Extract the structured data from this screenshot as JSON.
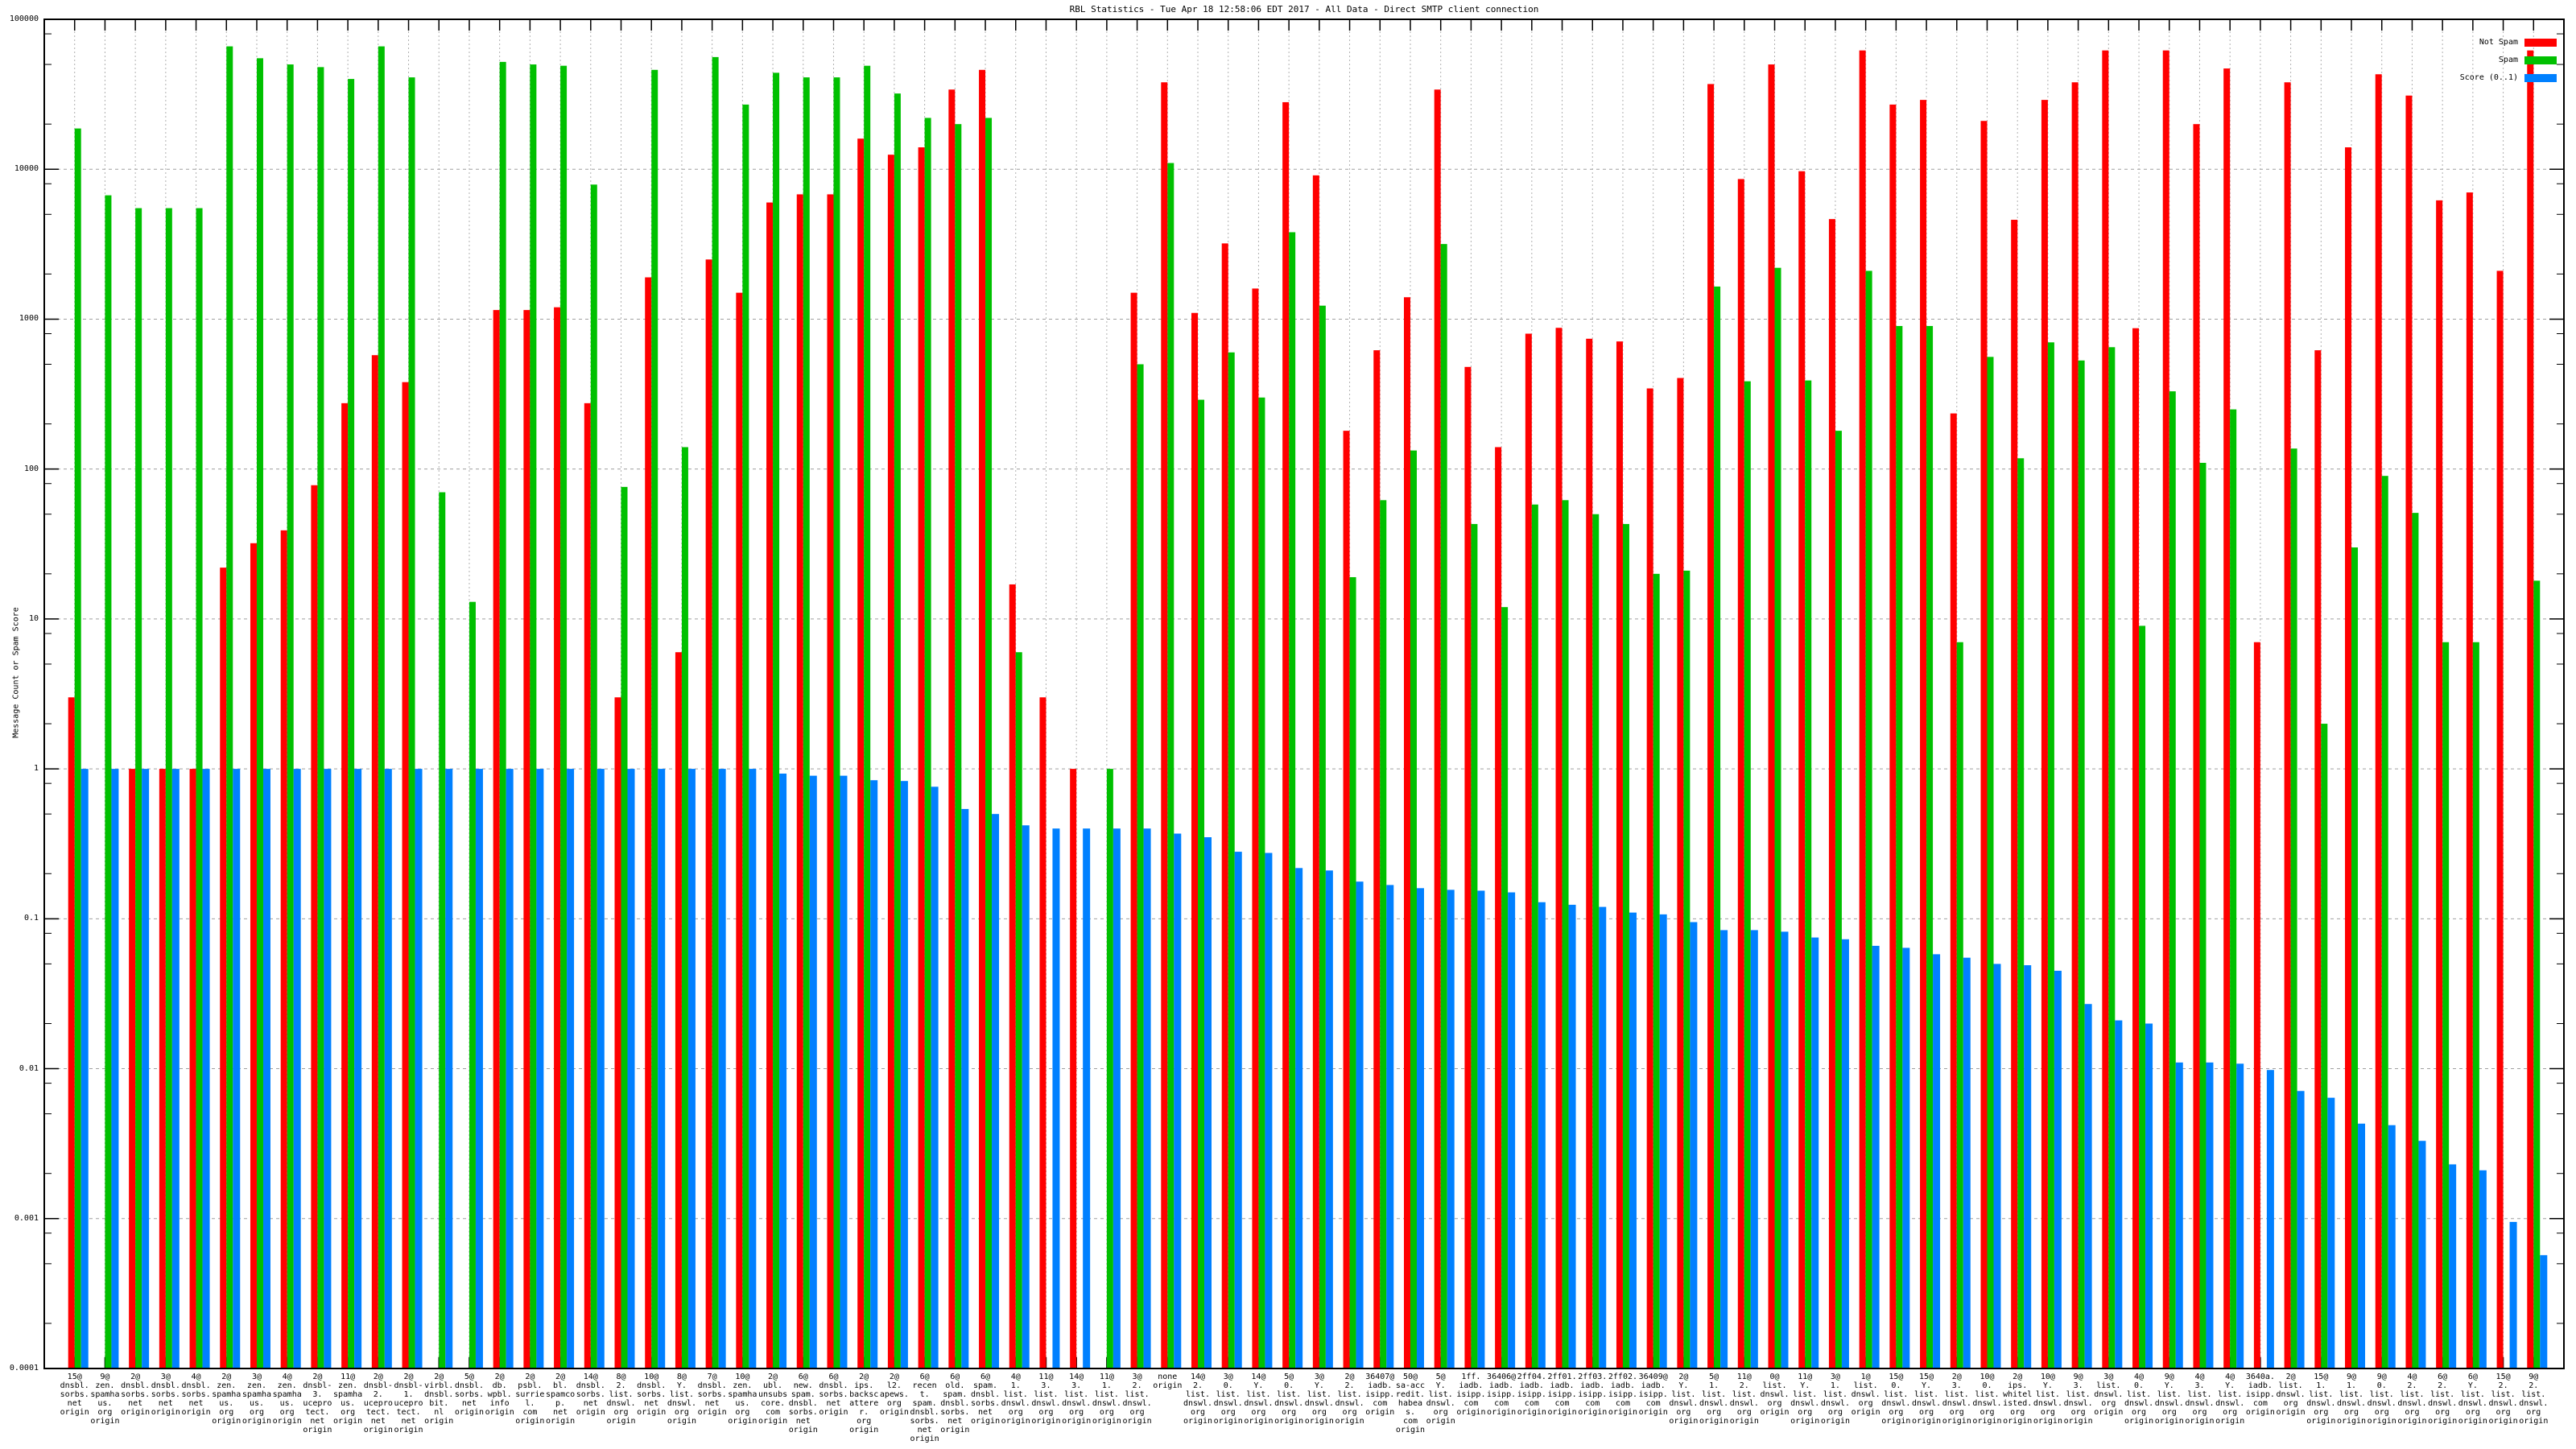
{
  "chart_data": {
    "type": "bar",
    "title": "RBL Statistics - Tue Apr 18 12:58:06 EDT 2017 - All Data - Direct SMTP client connection",
    "xlabel": "",
    "ylabel": "Message Count or Spam Score",
    "yscale": "log",
    "ylim": [
      0.0001,
      100000
    ],
    "ytick_labels": [
      "0.0001",
      "0.001",
      "0.01",
      "0.1",
      "1",
      "10",
      "100",
      "1000",
      "10000",
      "100000"
    ],
    "grid": true,
    "legend_position": "top-right",
    "legend": [
      "Not Spam",
      "Spam",
      "Score (0..1)"
    ],
    "colors": [
      "#ff0000",
      "#00c000",
      "#0080ff"
    ],
    "categories": [
      "15@\ndnsbl.\nsorbs.\nnet\norigin",
      "9@\nzen.\nspamhaus.\norg\norigin",
      "2@\ndnsbl.\nsorbs.\nnet\norigin",
      "3@\ndnsbl.\nsorbs.\nnet\norigin",
      "4@\ndnsbl.\nsorbs.\nnet\norigin",
      "2@\nzen.\nspamhaus.\norg\norigin",
      "3@\nzen.\nspamhaus.\norg\norigin",
      "4@\nzen.\nspamhaus.\norg\norigin",
      "2@\ndnsbl-3.\nuceprotect.\nnet\norigin",
      "11@\nzen.\nspamhaus.\norg\norigin",
      "2@\ndnsbl-2.\nuceprotect.\nnet\norigin",
      "2@\ndnsbl-1.\nuceprotect.\nnet\norigin",
      "2@\nvirbl.\ndnsbl.\nbit.\nnl\norigin",
      "5@\ndnsbl.\nsorbs.\nnet\norigin",
      "2@\ndb.\nwpbl.\ninfo\norigin",
      "2@\npsbl.\nsurriel.\ncom\norigin",
      "2@\nbl.\nspamcop.\nnet\norigin",
      "14@\ndnsbl.\nsorbs.\nnet\norigin",
      "8@\n2.\nlist.\ndnswl.\norg\norigin",
      "10@\ndnsbl.\nsorbs.\nnet\norigin",
      "8@\nY.\nlist.\ndnswl.\norg\norigin",
      "7@\ndnsbl.\nsorbs.\nnet\norigin",
      "10@\nzen.\nspamhaus.\norg\norigin",
      "2@\nubl.\nunsubscore.\ncom\norigin",
      "6@\nnew.\nspam.\ndnsbl.\nsorbs.\nnet\norigin",
      "6@\ndnsbl.\nsorbs.\nnet\norigin",
      "2@\nips.\nbackscatterer.\norg\norigin",
      "2@\nl2.\napews.\norg\norigin",
      "6@\nrecent.\nspam.\ndnsbl.\nsorbs.\nnet\norigin",
      "6@\nold.\nspam.\ndnsbl.\nsorbs.\nnet\norigin",
      "6@\nspam.\ndnsbl.\nsorbs.\nnet\norigin",
      "4@\n1.\nlist.\ndnswl.\norg\norigin",
      "11@\n3.\nlist.\ndnswl.\norg\norigin",
      "14@\n3.\nlist.\ndnswl.\norg\norigin",
      "11@\n1.\nlist.\ndnswl.\norg\norigin",
      "3@\n2.\nlist.\ndnswl.\norg\norigin",
      "none\norigin",
      "14@\n2.\nlist.\ndnswl.\norg\norigin",
      "3@\n0.\nlist.\ndnswl.\norg\norigin",
      "14@\nY.\nlist.\ndnswl.\norg\norigin",
      "5@\n0.\nlist.\ndnswl.\norg\norigin",
      "3@\nY.\nlist.\ndnswl.\norg\norigin",
      "2@\n2.\nlist.\ndnswl.\norg\norigin",
      "36407@\niadb.\nisipp.\ncom\norigin",
      "50@\nsa-accredit.\nhabeas.\ncom\norigin",
      "5@\nY.\nlist.\ndnswl.\norg\norigin",
      "1ff.\niadb.\nisipp.\ncom\norigin",
      "36406@\niadb.\nisipp.\ncom\norigin",
      "2ff04.\niadb.\nisipp.\ncom\norigin",
      "2ff01.\niadb.\nisipp.\ncom\norigin",
      "2ff03.\niadb.\nisipp.\ncom\norigin",
      "2ff02.\niadb.\nisipp.\ncom\norigin",
      "36409@\niadb.\nisipp.\ncom\norigin",
      "2@\nY.\nlist.\ndnswl.\norg\norigin",
      "5@\n1.\nlist.\ndnswl.\norg\norigin",
      "11@\n2.\nlist.\ndnswl.\norg\norigin",
      "0@\nlist.\ndnswl.\norg\norigin",
      "11@\nY.\nlist.\ndnswl.\norg\norigin",
      "3@\n1.\nlist.\ndnswl.\norg\norigin",
      "1@\nlist.\ndnswl.\norg\norigin",
      "15@\n0.\nlist.\ndnswl.\norg\norigin",
      "15@\nY.\nlist.\ndnswl.\norg\norigin",
      "2@\n3.\nlist.\ndnswl.\norg\norigin",
      "10@\n0.\nlist.\ndnswl.\norg\norigin",
      "2@\nips.\nwhitelisted.\norg\norigin",
      "10@\nY.\nlist.\ndnswl.\norg\norigin",
      "9@\n3.\nlist.\ndnswl.\norg\norigin",
      "3@\nlist.\ndnswl.\norg\norigin",
      "4@\n0.\nlist.\ndnswl.\norg\norigin",
      "9@\nY.\nlist.\ndnswl.\norg\norigin",
      "4@\n3.\nlist.\ndnswl.\norg\norigin",
      "4@\nY.\nlist.\ndnswl.\norg\norigin",
      "3640a.\niadb.\nisipp.\ncom\norigin",
      "2@\nlist.\ndnswl.\norg\norigin",
      "15@\n1.\nlist.\ndnswl.\norg\norigin",
      "9@\n1.\nlist.\ndnswl.\norg\norigin",
      "9@\n0.\nlist.\ndnswl.\norg\norigin",
      "4@\n2.\nlist.\ndnswl.\norg\norigin",
      "6@\n2.\nlist.\ndnswl.\norg\norigin",
      "6@\nY.\nlist.\ndnswl.\norg\norigin",
      "15@\n2.\nlist.\ndnswl.\norg\norigin",
      "9@\n2.\nlist.\ndnswl.\norg\norigin"
    ],
    "series": [
      {
        "name": "Not Spam",
        "values": [
          3,
          null,
          1,
          1,
          1,
          22,
          32,
          39,
          78,
          275,
          575,
          380,
          null,
          null,
          1150,
          1150,
          1200,
          275,
          3,
          1900,
          6,
          2500,
          1500,
          6000,
          6800,
          6800,
          16000,
          12500,
          14000,
          34000,
          46000,
          17,
          3,
          1,
          null,
          1500,
          38000,
          1100,
          3200,
          1600,
          28000,
          9100,
          180,
          620,
          1400,
          34000,
          480,
          140,
          800,
          875,
          740,
          710,
          345,
          405,
          37000,
          8600,
          50000,
          9700,
          4650,
          62000,
          27000,
          29000,
          235,
          21000,
          4600,
          29000,
          38000,
          62000,
          870,
          62000,
          20000,
          47000,
          7,
          38000,
          620,
          14000,
          43000,
          31000,
          6200,
          7000,
          2100,
          62000
        ]
      },
      {
        "name": "Spam",
        "values": [
          18700,
          6700,
          5500,
          5500,
          5500,
          66000,
          55000,
          50000,
          48000,
          40000,
          66000,
          41000,
          70,
          13,
          52000,
          50000,
          49000,
          7900,
          76,
          46000,
          140,
          56000,
          27000,
          44000,
          41000,
          41000,
          49000,
          32000,
          22000,
          20000,
          22000,
          6,
          null,
          null,
          1,
          500,
          11000,
          290,
          600,
          300,
          3800,
          1230,
          19,
          62,
          133,
          3170,
          43,
          12,
          58,
          62,
          50,
          43,
          20,
          21,
          1650,
          385,
          2200,
          390,
          180,
          2100,
          900,
          900,
          7,
          560,
          118,
          700,
          530,
          650,
          9,
          330,
          110,
          250,
          null,
          137,
          2,
          30,
          90,
          51,
          7,
          7,
          null,
          18
        ]
      },
      {
        "name": "Score (0..1)",
        "values": [
          1,
          1,
          1,
          1,
          1,
          1,
          1,
          1,
          1,
          1,
          1,
          1,
          1,
          1,
          1,
          1,
          1,
          1,
          1,
          1,
          1,
          1,
          1,
          0.93,
          0.9,
          0.9,
          0.84,
          0.83,
          0.76,
          0.54,
          0.5,
          0.42,
          0.4,
          0.4,
          0.4,
          0.4,
          0.37,
          0.35,
          0.28,
          0.275,
          0.218,
          0.21,
          0.177,
          0.168,
          0.16,
          0.156,
          0.154,
          0.15,
          0.129,
          0.124,
          0.12,
          0.11,
          0.107,
          0.095,
          0.084,
          0.084,
          0.082,
          0.075,
          0.073,
          0.066,
          0.064,
          0.058,
          0.055,
          0.05,
          0.049,
          0.045,
          0.027,
          0.021,
          0.02,
          0.011,
          0.011,
          0.0108,
          0.0098,
          0.0071,
          0.0064,
          0.0043,
          0.0042,
          0.0033,
          0.0023,
          0.0021,
          0.00095,
          0.00057
        ]
      }
    ]
  }
}
